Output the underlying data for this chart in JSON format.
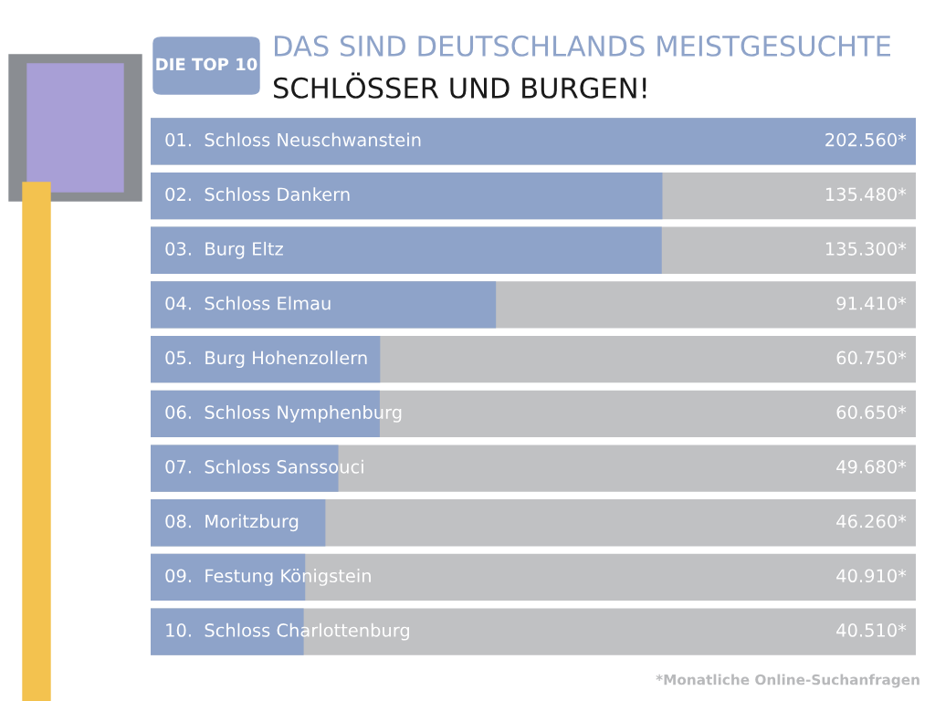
{
  "chart_data": {
    "type": "bar",
    "orientation": "horizontal",
    "title": "DAS SIND DEUTSCHLANDS MEISTGESUCHTE",
    "subtitle": "SCHLÖSSER UND BURGEN!",
    "categories": [
      "01.  Schloss Neuschwanstein",
      "02.  Schloss Dankern",
      "03.  Burg Eltz",
      "04.  Schloss Elmau",
      "05.  Burg Hohenzollern",
      "06.  Schloss Nymphenburg",
      "07.  Schloss Sanssouci",
      "08.  Moritzburg",
      "09.  Festung Königstein",
      "10.  Schloss Charlottenburg"
    ],
    "values": [
      202560,
      135480,
      135300,
      91410,
      60750,
      60650,
      49680,
      46260,
      40910,
      40510
    ],
    "value_labels": [
      "202.560*",
      "135.480*",
      "135.300*",
      "91.410*",
      "60.750*",
      "60.650*",
      "49.680*",
      "46.260*",
      "40.910*",
      "40.510*"
    ],
    "color": "#8ea3c9",
    "xlim": [
      0,
      202560
    ],
    "legend": false,
    "annotations": [
      "DIE TOP 10",
      "*Monatliche Online-Suchanfragen"
    ]
  }
}
